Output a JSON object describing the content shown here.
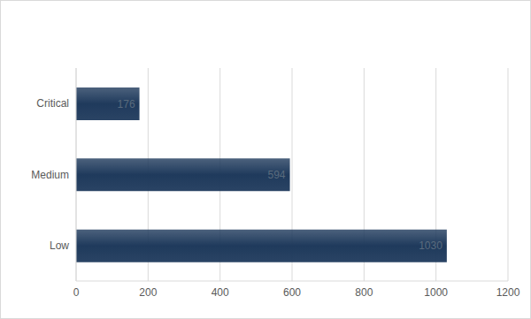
{
  "chart_data": {
    "type": "bar",
    "orientation": "horizontal",
    "categories": [
      "Critical",
      "Medium",
      "Low"
    ],
    "values": [
      176,
      594,
      1030
    ],
    "color": "#1f3a5c",
    "xlim": [
      0,
      1200
    ],
    "xticks": [
      0,
      200,
      400,
      600,
      800,
      1000,
      1200
    ],
    "grid": true,
    "data_labels": true
  }
}
